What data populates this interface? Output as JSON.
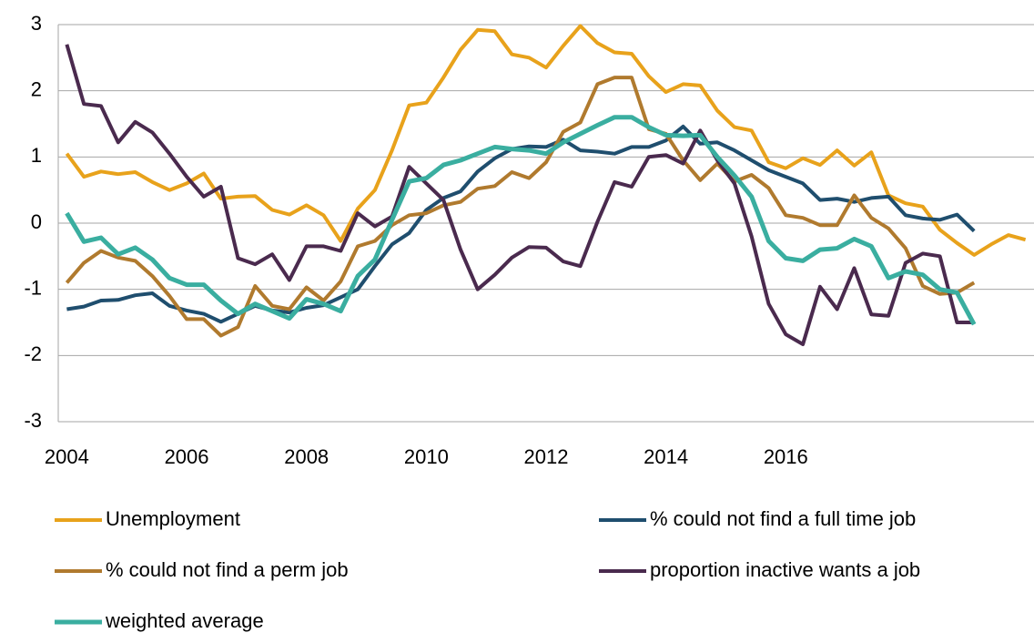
{
  "chart_data": {
    "type": "line",
    "categories": [
      "2004",
      null,
      null,
      null,
      null,
      null,
      null,
      "2006",
      null,
      null,
      null,
      null,
      null,
      null,
      "2008",
      null,
      null,
      null,
      null,
      null,
      null,
      "2010",
      null,
      null,
      null,
      null,
      null,
      null,
      "2012",
      null,
      null,
      null,
      null,
      null,
      null,
      "2014",
      null,
      null,
      null,
      null,
      null,
      null,
      "2016",
      null,
      null,
      null,
      null,
      null,
      null,
      null,
      null,
      null,
      null,
      null,
      null,
      null,
      null
    ],
    "ylim": [
      -3,
      3
    ],
    "yticks": [
      -3,
      -2,
      -1,
      0,
      1,
      2,
      3
    ],
    "grid": true,
    "series": [
      {
        "name": "Unemployment",
        "color": "#e8a21b",
        "values": [
          1.05,
          0.7,
          0.78,
          0.74,
          0.77,
          0.62,
          0.5,
          0.6,
          0.75,
          0.37,
          0.4,
          0.41,
          0.2,
          0.13,
          0.27,
          0.12,
          -0.27,
          0.22,
          0.5,
          1.1,
          1.78,
          1.82,
          2.2,
          2.62,
          2.92,
          2.9,
          2.55,
          2.5,
          2.35,
          2.68,
          2.98,
          2.72,
          2.58,
          2.56,
          2.22,
          1.98,
          2.1,
          2.08,
          1.7,
          1.45,
          1.4,
          0.92,
          0.83,
          0.98,
          0.88,
          1.1,
          0.87,
          1.07,
          0.42,
          0.3,
          0.25,
          -0.1,
          -0.3,
          -0.48,
          -0.32,
          -0.18,
          -0.25
        ]
      },
      {
        "name": "% could not find a full time job",
        "color": "#1f4e6e",
        "values": [
          -1.3,
          -1.26,
          -1.17,
          -1.16,
          -1.09,
          -1.06,
          -1.25,
          -1.32,
          -1.37,
          -1.49,
          -1.37,
          -1.25,
          -1.32,
          -1.35,
          -1.28,
          -1.24,
          -1.12,
          -1.0,
          -0.65,
          -0.32,
          -0.15,
          0.2,
          0.38,
          0.48,
          0.78,
          0.98,
          1.12,
          1.16,
          1.15,
          1.26,
          1.1,
          1.08,
          1.05,
          1.15,
          1.15,
          1.25,
          1.46,
          1.2,
          1.22,
          1.1,
          0.95,
          0.8,
          0.7,
          0.6,
          0.35,
          0.37,
          0.32,
          0.38,
          0.4,
          0.12,
          0.07,
          0.05,
          0.13,
          -0.12,
          null,
          null,
          null
        ]
      },
      {
        "name": "% could not find a perm job",
        "color": "#b07a2e",
        "values": [
          -0.9,
          -0.6,
          -0.42,
          -0.52,
          -0.57,
          -0.8,
          -1.1,
          -1.45,
          -1.45,
          -1.7,
          -1.57,
          -0.95,
          -1.25,
          -1.3,
          -0.97,
          -1.17,
          -0.88,
          -0.35,
          -0.27,
          -0.03,
          0.12,
          0.15,
          0.27,
          0.32,
          0.52,
          0.56,
          0.77,
          0.68,
          0.92,
          1.38,
          1.52,
          2.1,
          2.2,
          2.2,
          1.42,
          1.35,
          0.95,
          0.65,
          0.9,
          0.63,
          0.73,
          0.53,
          0.12,
          0.08,
          -0.03,
          -0.03,
          0.42,
          0.08,
          -0.08,
          -0.38,
          -0.95,
          -1.07,
          -1.05,
          -0.9,
          null,
          null,
          null
        ]
      },
      {
        "name": "proportion inactive wants a job",
        "color": "#4a2a4e",
        "values": [
          2.7,
          1.8,
          1.77,
          1.22,
          1.53,
          1.37,
          1.05,
          0.7,
          0.4,
          0.55,
          -0.53,
          -0.62,
          -0.47,
          -0.86,
          -0.35,
          -0.35,
          -0.42,
          0.15,
          -0.05,
          0.1,
          0.85,
          0.6,
          0.35,
          -0.4,
          -1.0,
          -0.78,
          -0.52,
          -0.36,
          -0.37,
          -0.58,
          -0.65,
          0.02,
          0.62,
          0.55,
          1.0,
          1.03,
          0.9,
          1.4,
          0.95,
          0.6,
          -0.2,
          -1.22,
          -1.68,
          -1.83,
          -0.96,
          -1.3,
          -0.68,
          -1.38,
          -1.4,
          -0.6,
          -0.46,
          -0.5,
          -1.5,
          -1.5,
          null,
          null,
          null
        ]
      },
      {
        "name": "weighted average",
        "color": "#3aaea0",
        "values": [
          0.15,
          -0.28,
          -0.22,
          -0.47,
          -0.37,
          -0.55,
          -0.83,
          -0.93,
          -0.93,
          -1.17,
          -1.37,
          -1.22,
          -1.33,
          -1.44,
          -1.15,
          -1.22,
          -1.33,
          -0.8,
          -0.55,
          0.05,
          0.63,
          0.68,
          0.88,
          0.95,
          1.05,
          1.15,
          1.12,
          1.1,
          1.05,
          1.22,
          1.35,
          1.48,
          1.6,
          1.6,
          1.45,
          1.33,
          1.32,
          1.33,
          1.0,
          0.72,
          0.4,
          -0.27,
          -0.53,
          -0.57,
          -0.4,
          -0.38,
          -0.24,
          -0.35,
          -0.83,
          -0.73,
          -0.78,
          -1.0,
          -1.05,
          -1.53,
          null,
          null,
          null
        ]
      }
    ]
  }
}
